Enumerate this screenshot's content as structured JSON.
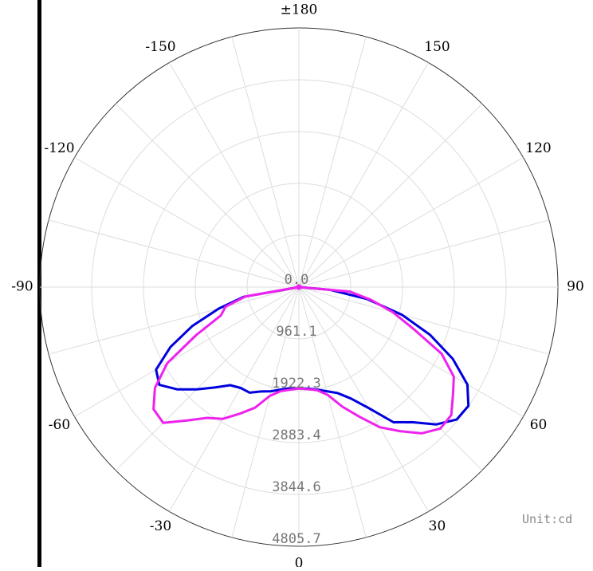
{
  "chart_data": {
    "type": "polar",
    "unit_label": "Unit:cd",
    "angle_labels": [
      "±180",
      "150",
      "120",
      "90",
      "60",
      "30",
      "0",
      "-30",
      "-60",
      "-90",
      "-120",
      "-150"
    ],
    "angle_values": [
      180,
      150,
      120,
      90,
      60,
      30,
      0,
      -30,
      -60,
      -90,
      -120,
      -150
    ],
    "angle_direction": "0 at bottom, positive to the right (counter-clockwise)",
    "radial_tick_labels": [
      "0.0",
      "961.1",
      "1922.3",
      "2883.4",
      "3844.6",
      "4805.7"
    ],
    "radial_tick_values": [
      0,
      961.1,
      1922.3,
      2883.4,
      3844.6,
      4805.7
    ],
    "rlim": [
      0,
      4805.7
    ],
    "grid": true,
    "series": [
      {
        "color": "#0000dd",
        "theta": [
          -90,
          -80,
          -75,
          -70,
          -65,
          -60,
          -55,
          -50,
          -45,
          -40,
          -35,
          -30,
          -25,
          -20,
          -15,
          -10,
          -5,
          0,
          5,
          10,
          15,
          20,
          25,
          30,
          35,
          40,
          45,
          50,
          55,
          60,
          65,
          70,
          75,
          80,
          85,
          90
        ],
        "r": [
          0,
          1040,
          1540,
          2100,
          2630,
          3060,
          3160,
          2950,
          2680,
          2430,
          2220,
          2160,
          2160,
          2060,
          2000,
          1930,
          1880,
          1880,
          1890,
          1930,
          2000,
          2090,
          2280,
          2590,
          3060,
          3270,
          3600,
          3820,
          3840,
          3610,
          3150,
          2590,
          1980,
          1290,
          590,
          0
        ]
      },
      {
        "color": "#ee22ee",
        "theta": [
          -90,
          -80,
          -75,
          -70,
          -65,
          -60,
          -55,
          -50,
          -45,
          -40,
          -35,
          -30,
          -25,
          -20,
          -15,
          -10,
          -5,
          0,
          5,
          10,
          15,
          20,
          25,
          30,
          35,
          40,
          45,
          50,
          55,
          60,
          65,
          70,
          75,
          80,
          85,
          90
        ],
        "r": [
          0,
          1010,
          1410,
          1540,
          2100,
          2820,
          3260,
          3520,
          3560,
          3230,
          2960,
          2820,
          2590,
          2380,
          2090,
          1960,
          1910,
          1880,
          1900,
          1940,
          2070,
          2360,
          2650,
          3000,
          3260,
          3540,
          3710,
          3690,
          3490,
          3320,
          2920,
          2260,
          1810,
          1360,
          950,
          0
        ]
      }
    ]
  }
}
